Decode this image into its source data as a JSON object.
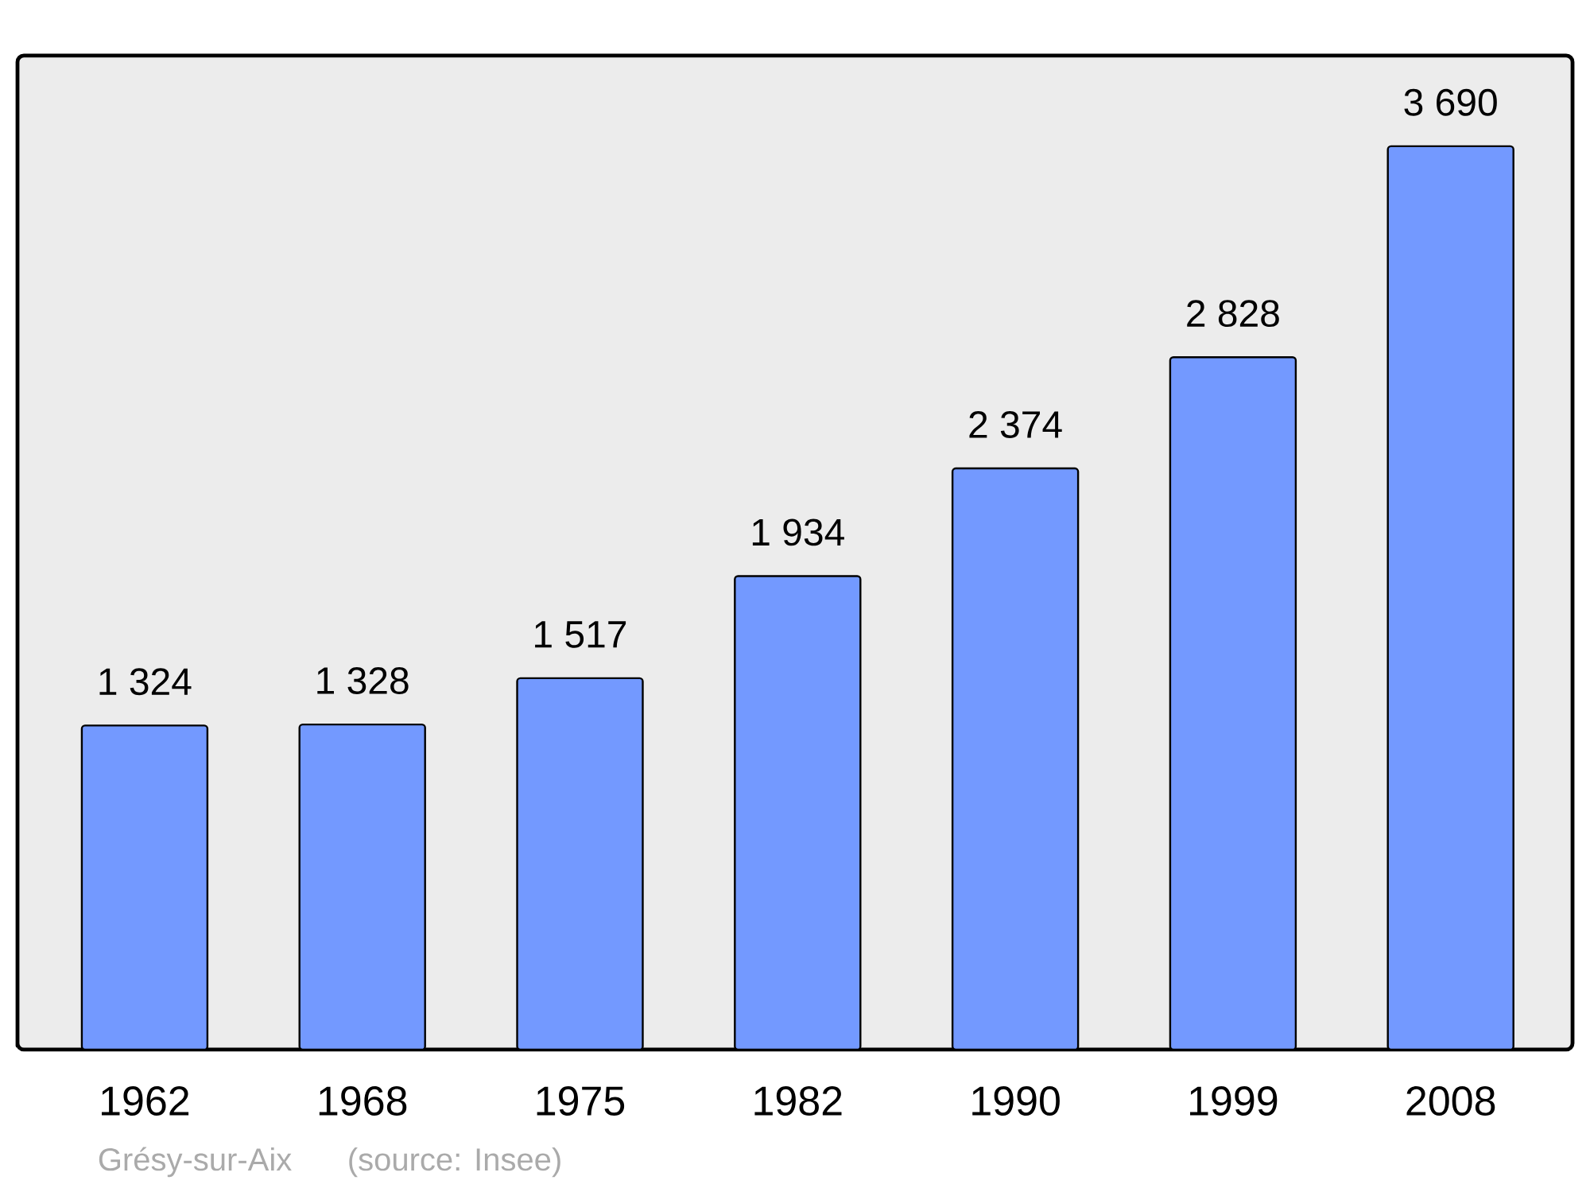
{
  "chart_data": {
    "type": "bar",
    "categories": [
      "1962",
      "1968",
      "1975",
      "1982",
      "1990",
      "1999",
      "2008"
    ],
    "values": [
      1324,
      1328,
      1517,
      1934,
      2374,
      2828,
      3690
    ],
    "value_labels": [
      "1 324",
      "1 328",
      "1 517",
      "1 934",
      "2 374",
      "2 828",
      "3 690"
    ],
    "color": "#7399ff",
    "ylim": [
      0,
      4060
    ],
    "tick_labels": "x",
    "annotations": [
      "Grésy-sur-Aix",
      "(source: Insee)"
    ]
  }
}
